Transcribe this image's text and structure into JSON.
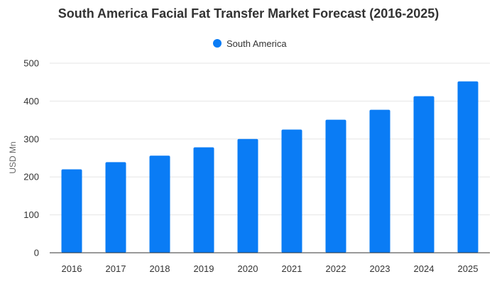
{
  "chart_data": {
    "type": "bar",
    "title": "South America Facial Fat Transfer Market Forecast (2016-2025)",
    "xlabel": "",
    "ylabel": "USD Mn",
    "categories": [
      "2016",
      "2017",
      "2018",
      "2019",
      "2020",
      "2021",
      "2022",
      "2023",
      "2024",
      "2025"
    ],
    "series": [
      {
        "name": "South America",
        "color": "#0a7cf5",
        "values": [
          220,
          239,
          256,
          278,
          300,
          325,
          351,
          377,
          413,
          452
        ]
      }
    ],
    "ylim": [
      0,
      500
    ],
    "yticks": [
      0,
      100,
      200,
      300,
      400,
      500
    ],
    "grid": true,
    "legend_position": "top-center"
  }
}
